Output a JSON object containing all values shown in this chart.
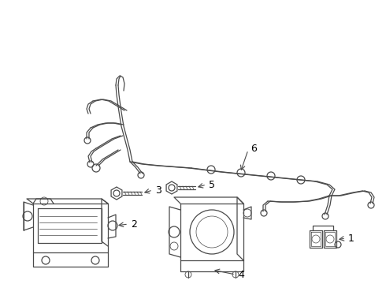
{
  "background_color": "#ffffff",
  "line_color": "#4a4a4a",
  "fig_width": 4.9,
  "fig_height": 3.6,
  "dpi": 100
}
